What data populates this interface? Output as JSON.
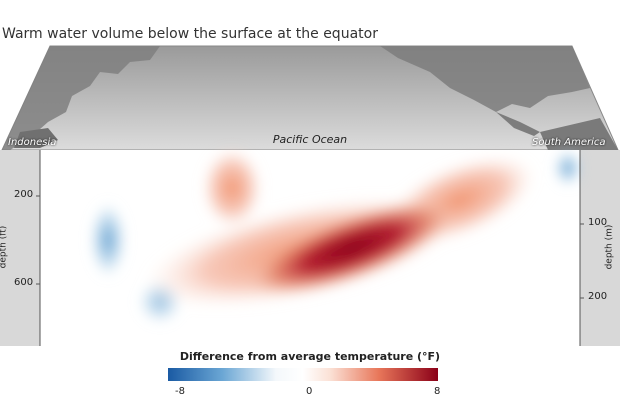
{
  "title": "Warm water volume below the surface at the equator",
  "map": {
    "left_label": "Indonesia",
    "center_label": "Pacific Ocean",
    "right_label": "South America"
  },
  "chart_data": {
    "type": "heatmap",
    "title": "Warm water volume below the surface at the equator",
    "x_extent": [
      "Indonesia",
      "South America"
    ],
    "y_left": {
      "label": "depth (ft)",
      "ticks": [
        200,
        600
      ]
    },
    "y_right": {
      "label": "depth (m)",
      "ticks": [
        100,
        200
      ]
    },
    "colorbar": {
      "label": "Difference from average temperature (°F)",
      "min": -8,
      "max": 8,
      "ticks": [
        "-8",
        "0",
        "8"
      ],
      "colors": [
        "#1a5aa3",
        "#ffffff",
        "#8b0018"
      ]
    }
  },
  "colors": {
    "cold": "#2166ac",
    "warm": "#b2182b",
    "core": "#7a0010"
  }
}
